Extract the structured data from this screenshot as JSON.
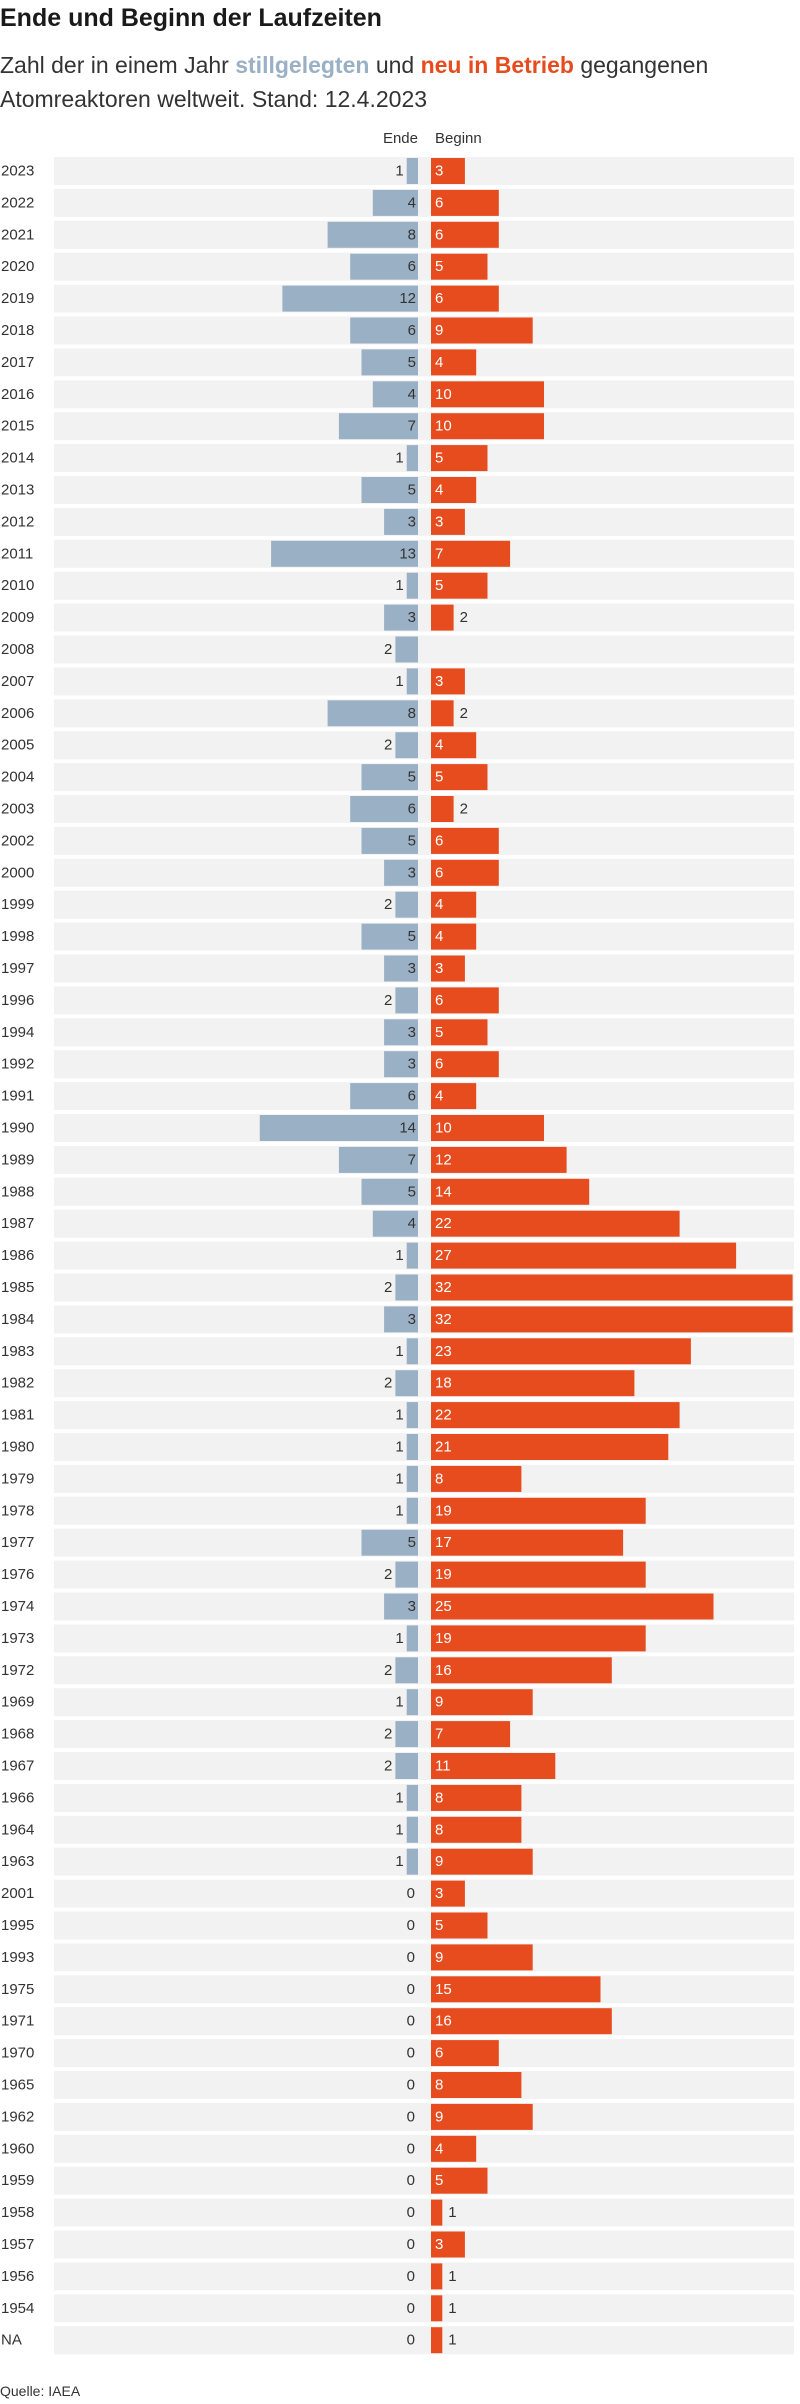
{
  "title": "Ende und Beginn der Laufzeiten",
  "subtitle": {
    "part1": "Zahl der in einem Jahr ",
    "ende_word": "stillgelegten",
    "part2": " und ",
    "beginn_word": "neu in Betrieb",
    "part3": " gegangenen Atomreaktoren weltweit. Stand: 12.4.2023"
  },
  "columns": {
    "ende": "Ende",
    "beginn": "Beginn"
  },
  "source": "Quelle: IAEA",
  "colors": {
    "ende": "#9ab0c4",
    "beginn": "#e64c1e",
    "row_bg": "#f2f2f2",
    "label": "#333333",
    "title": "#1a1a1a"
  },
  "chart_data": {
    "type": "bar",
    "orientation": "horizontal-diverging",
    "series": [
      {
        "name": "stillgelegten",
        "key": "ende"
      },
      {
        "name": "neu in Betrieb",
        "key": "beginn"
      }
    ],
    "rows": [
      {
        "year": "2023",
        "ende": 1,
        "beginn": 3
      },
      {
        "year": "2022",
        "ende": 4,
        "beginn": 6
      },
      {
        "year": "2021",
        "ende": 8,
        "beginn": 6
      },
      {
        "year": "2020",
        "ende": 6,
        "beginn": 5
      },
      {
        "year": "2019",
        "ende": 12,
        "beginn": 6
      },
      {
        "year": "2018",
        "ende": 6,
        "beginn": 9
      },
      {
        "year": "2017",
        "ende": 5,
        "beginn": 4
      },
      {
        "year": "2016",
        "ende": 4,
        "beginn": 10
      },
      {
        "year": "2015",
        "ende": 7,
        "beginn": 10
      },
      {
        "year": "2014",
        "ende": 1,
        "beginn": 5
      },
      {
        "year": "2013",
        "ende": 5,
        "beginn": 4
      },
      {
        "year": "2012",
        "ende": 3,
        "beginn": 3
      },
      {
        "year": "2011",
        "ende": 13,
        "beginn": 7
      },
      {
        "year": "2010",
        "ende": 1,
        "beginn": 5
      },
      {
        "year": "2009",
        "ende": 3,
        "beginn": 2
      },
      {
        "year": "2008",
        "ende": 2,
        "beginn": null
      },
      {
        "year": "2007",
        "ende": 1,
        "beginn": 3
      },
      {
        "year": "2006",
        "ende": 8,
        "beginn": 2
      },
      {
        "year": "2005",
        "ende": 2,
        "beginn": 4
      },
      {
        "year": "2004",
        "ende": 5,
        "beginn": 5
      },
      {
        "year": "2003",
        "ende": 6,
        "beginn": 2
      },
      {
        "year": "2002",
        "ende": 5,
        "beginn": 6
      },
      {
        "year": "2000",
        "ende": 3,
        "beginn": 6
      },
      {
        "year": "1999",
        "ende": 2,
        "beginn": 4
      },
      {
        "year": "1998",
        "ende": 5,
        "beginn": 4
      },
      {
        "year": "1997",
        "ende": 3,
        "beginn": 3
      },
      {
        "year": "1996",
        "ende": 2,
        "beginn": 6
      },
      {
        "year": "1994",
        "ende": 3,
        "beginn": 5
      },
      {
        "year": "1992",
        "ende": 3,
        "beginn": 6
      },
      {
        "year": "1991",
        "ende": 6,
        "beginn": 4
      },
      {
        "year": "1990",
        "ende": 14,
        "beginn": 10
      },
      {
        "year": "1989",
        "ende": 7,
        "beginn": 12
      },
      {
        "year": "1988",
        "ende": 5,
        "beginn": 14
      },
      {
        "year": "1987",
        "ende": 4,
        "beginn": 22
      },
      {
        "year": "1986",
        "ende": 1,
        "beginn": 27
      },
      {
        "year": "1985",
        "ende": 2,
        "beginn": 32
      },
      {
        "year": "1984",
        "ende": 3,
        "beginn": 32
      },
      {
        "year": "1983",
        "ende": 1,
        "beginn": 23
      },
      {
        "year": "1982",
        "ende": 2,
        "beginn": 18
      },
      {
        "year": "1981",
        "ende": 1,
        "beginn": 22
      },
      {
        "year": "1980",
        "ende": 1,
        "beginn": 21
      },
      {
        "year": "1979",
        "ende": 1,
        "beginn": 8
      },
      {
        "year": "1978",
        "ende": 1,
        "beginn": 19
      },
      {
        "year": "1977",
        "ende": 5,
        "beginn": 17
      },
      {
        "year": "1976",
        "ende": 2,
        "beginn": 19
      },
      {
        "year": "1974",
        "ende": 3,
        "beginn": 25
      },
      {
        "year": "1973",
        "ende": 1,
        "beginn": 19
      },
      {
        "year": "1972",
        "ende": 2,
        "beginn": 16
      },
      {
        "year": "1969",
        "ende": 1,
        "beginn": 9
      },
      {
        "year": "1968",
        "ende": 2,
        "beginn": 7
      },
      {
        "year": "1967",
        "ende": 2,
        "beginn": 11
      },
      {
        "year": "1966",
        "ende": 1,
        "beginn": 8
      },
      {
        "year": "1964",
        "ende": 1,
        "beginn": 8
      },
      {
        "year": "1963",
        "ende": 1,
        "beginn": 9
      },
      {
        "year": "2001",
        "ende": 0,
        "beginn": 3
      },
      {
        "year": "1995",
        "ende": 0,
        "beginn": 5
      },
      {
        "year": "1993",
        "ende": 0,
        "beginn": 9
      },
      {
        "year": "1975",
        "ende": 0,
        "beginn": 15
      },
      {
        "year": "1971",
        "ende": 0,
        "beginn": 16
      },
      {
        "year": "1970",
        "ende": 0,
        "beginn": 6
      },
      {
        "year": "1965",
        "ende": 0,
        "beginn": 8
      },
      {
        "year": "1962",
        "ende": 0,
        "beginn": 9
      },
      {
        "year": "1960",
        "ende": 0,
        "beginn": 4
      },
      {
        "year": "1959",
        "ende": 0,
        "beginn": 5
      },
      {
        "year": "1958",
        "ende": 0,
        "beginn": 1
      },
      {
        "year": "1957",
        "ende": 0,
        "beginn": 3
      },
      {
        "year": "1956",
        "ende": 0,
        "beginn": 1
      },
      {
        "year": "1954",
        "ende": 0,
        "beginn": 1
      },
      {
        "year": "NA",
        "ende": 0,
        "beginn": 1
      }
    ]
  }
}
